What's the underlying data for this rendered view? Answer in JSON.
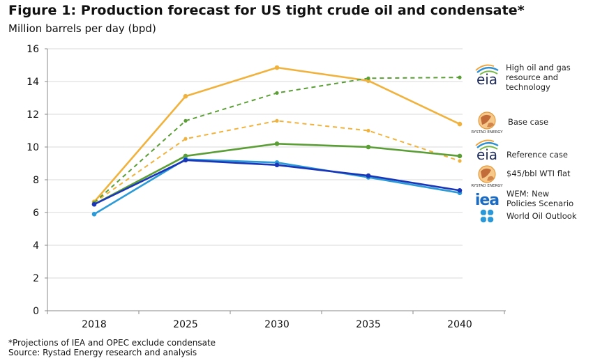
{
  "header": {
    "title": "Figure 1: Production forecast for US tight crude oil and condensate*",
    "subtitle": "Million barrels per day (bpd)"
  },
  "footer": {
    "note": "*Projections of IEA and OPEC exclude condensate",
    "source": "Source: Rystad Energy research and analysis"
  },
  "chart_data": {
    "type": "line",
    "title": "Figure 1: Production forecast for US tight crude oil and condensate*",
    "ylabel": "Million barrels per day (bpd)",
    "xlabel": "",
    "categories": [
      "2018",
      "2025",
      "2030",
      "2035",
      "2040"
    ],
    "ylim": [
      0,
      16
    ],
    "yticks": [
      0,
      2,
      4,
      6,
      8,
      10,
      12,
      14,
      16
    ],
    "grid": "horizontal",
    "legend_position": "right",
    "series": [
      {
        "name": "High oil and gas resource and technology",
        "logo": "eia",
        "color": "#5a9e35",
        "dash": true,
        "values": [
          6.6,
          11.6,
          13.3,
          14.2,
          14.25
        ]
      },
      {
        "name": "Base case",
        "logo": "rystad",
        "color": "#f0b23c",
        "dash": false,
        "values": [
          6.65,
          13.1,
          14.85,
          14.05,
          11.4
        ]
      },
      {
        "name": "Reference case",
        "logo": "eia",
        "color": "#5a9e35",
        "dash": false,
        "values": [
          6.5,
          9.45,
          10.2,
          10.0,
          9.45
        ]
      },
      {
        "name": "$45/bbl WTI flat",
        "logo": "rystad",
        "color": "#f0b23c",
        "dash": true,
        "values": [
          6.6,
          10.5,
          11.6,
          11.0,
          9.15
        ]
      },
      {
        "name": "WEM: New Policies Scenario",
        "logo": "iea",
        "color": "#1a35b8",
        "dash": false,
        "values": [
          6.5,
          9.2,
          8.9,
          8.25,
          7.35
        ]
      },
      {
        "name": "World Oil Outlook",
        "logo": "opec",
        "color": "#2b9ad6",
        "dash": false,
        "values": [
          5.9,
          9.25,
          9.05,
          8.15,
          7.2
        ]
      }
    ],
    "logos": {
      "eia": "eia",
      "rystad": "RYSTAD ENERGY",
      "iea": "iea"
    }
  }
}
